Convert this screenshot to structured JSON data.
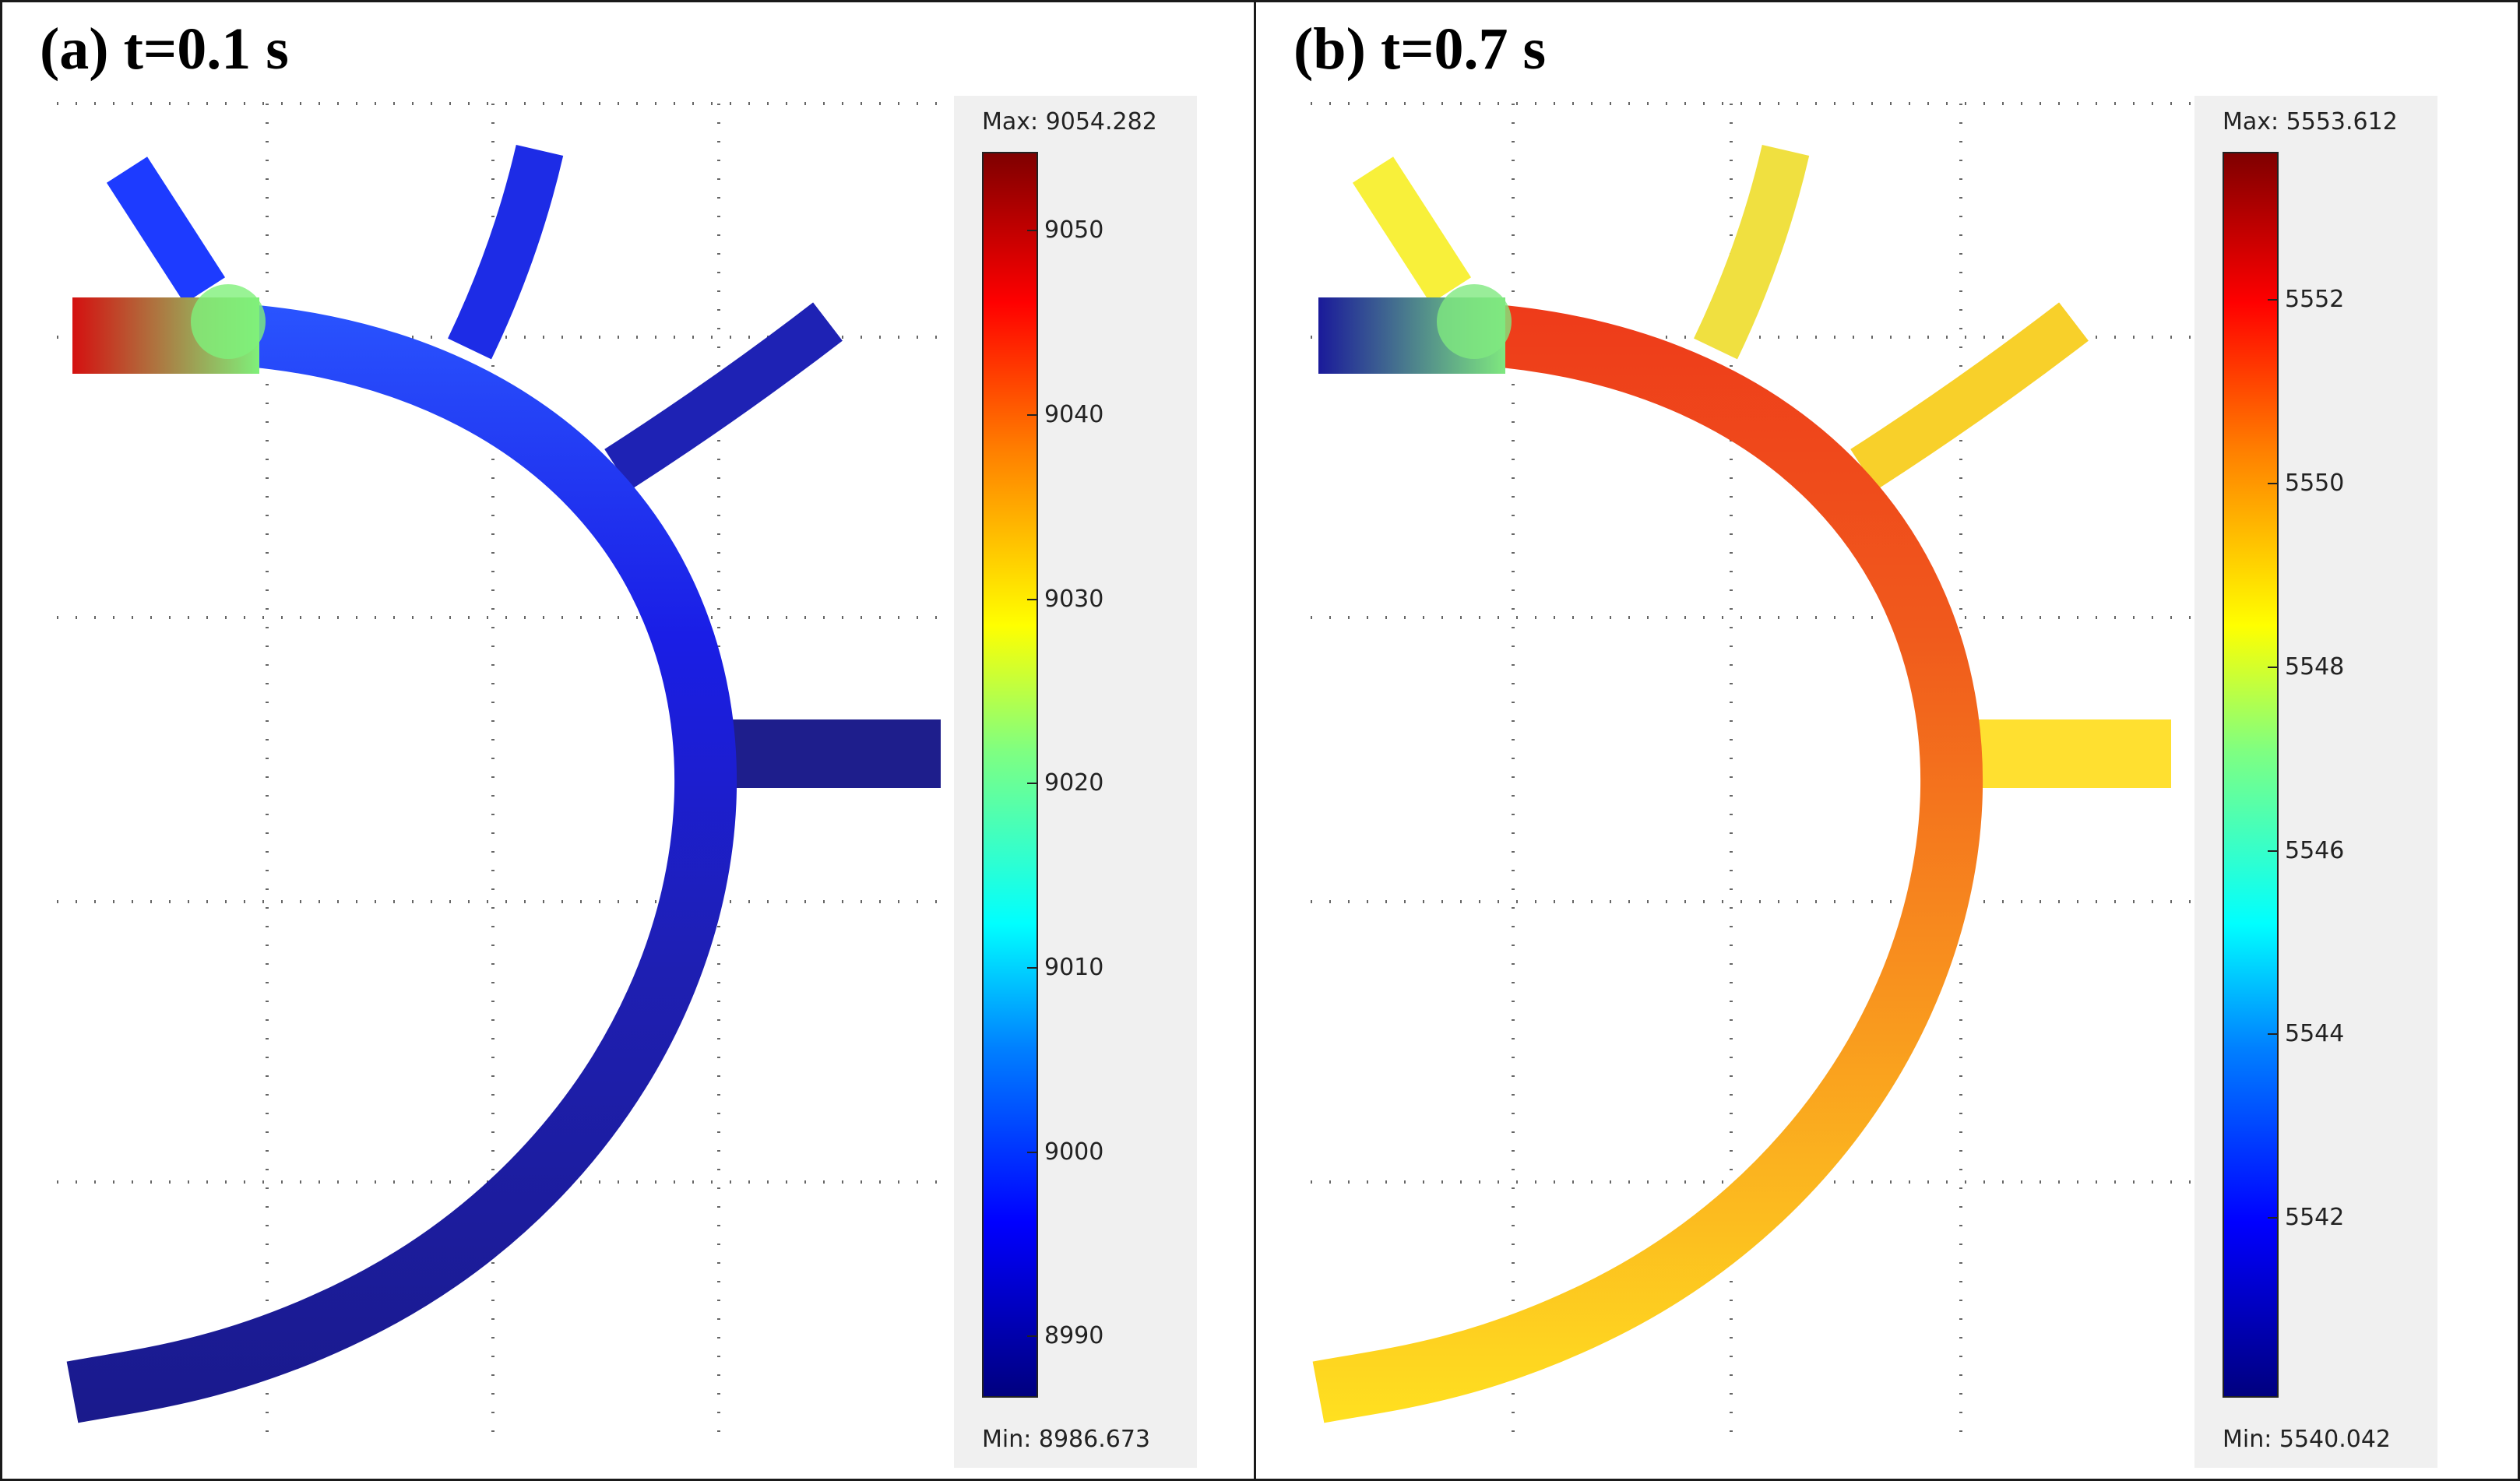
{
  "panels": [
    {
      "title": "(a) t=0.1 s",
      "colorbar": {
        "max_label": "Max: 9054.282",
        "min_label": "Min: 8986.673",
        "range": [
          8986.673,
          9054.282
        ],
        "ticks": [
          "9050",
          "9040",
          "9030",
          "9020",
          "9010",
          "9000",
          "8990"
        ]
      },
      "field_colors": {
        "inlet": "#d41010",
        "junction_top": "#7ff07a",
        "arc_upper": "#2a55ff",
        "arc_mid": "#1a1ee6",
        "arc_lower": "#1e1fb2",
        "arc_end": "#1a1a8c",
        "branch_1": "#1d3bff",
        "branch_2": "#1d2ce6",
        "branch_3": "#1e22b4",
        "branch_4": "#1e1e8c"
      }
    },
    {
      "title": "(b) t=0.7 s",
      "colorbar": {
        "max_label": "Max: 5553.612",
        "min_label": "Min: 5540.042",
        "range": [
          5540.042,
          5553.612
        ],
        "ticks": [
          "5552",
          "5550",
          "5548",
          "5546",
          "5544",
          "5542"
        ]
      },
      "field_colors": {
        "inlet": "#1a1a9a",
        "junction_top": "#7fe87f",
        "arc_upper": "#ee3a1a",
        "arc_mid": "#f05a1c",
        "arc_lower": "#f8901e",
        "arc_end": "#ffe020",
        "branch_1": "#f8f03a",
        "branch_2": "#f0e040",
        "branch_3": "#f8d02a",
        "branch_4": "#ffe030"
      }
    }
  ]
}
